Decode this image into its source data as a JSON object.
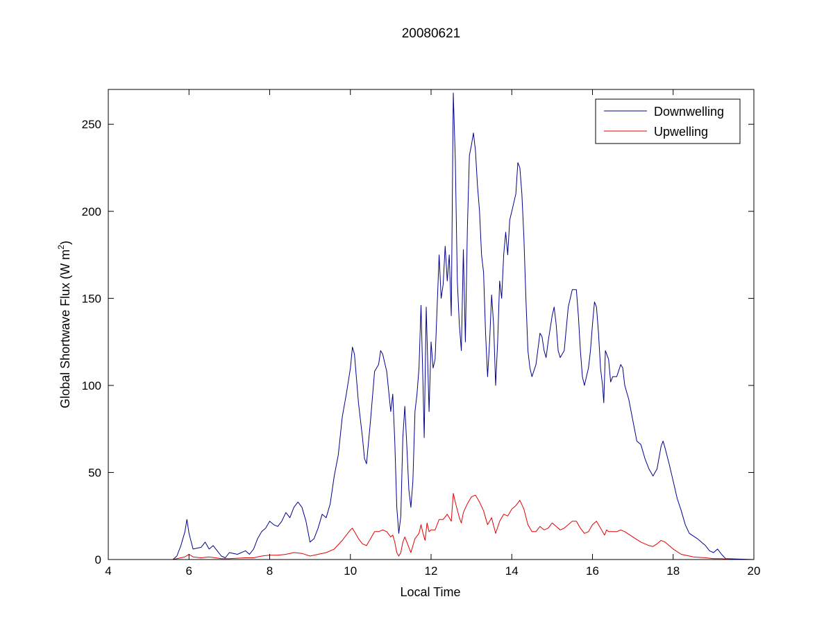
{
  "chart_data": {
    "type": "line",
    "title": "20080621",
    "xlabel": "Local Time",
    "ylabel_main": "Global Shortwave Flux (W m",
    "ylabel_sup": "2",
    "ylabel_end": ")",
    "xlim": [
      4,
      20
    ],
    "ylim": [
      0,
      270
    ],
    "xticks": [
      4,
      6,
      8,
      10,
      12,
      14,
      16,
      18,
      20
    ],
    "yticks": [
      0,
      50,
      100,
      150,
      200,
      250
    ],
    "grid": false,
    "legend_position": "top-right",
    "series": [
      {
        "name": "Downwelling",
        "color": "#00008b",
        "points": [
          [
            4.0,
            0
          ],
          [
            5.6,
            0
          ],
          [
            5.7,
            2
          ],
          [
            5.8,
            8
          ],
          [
            5.9,
            16
          ],
          [
            5.95,
            23
          ],
          [
            6.0,
            15
          ],
          [
            6.1,
            6
          ],
          [
            6.3,
            7
          ],
          [
            6.4,
            10
          ],
          [
            6.5,
            6
          ],
          [
            6.6,
            8
          ],
          [
            6.7,
            5
          ],
          [
            6.8,
            2
          ],
          [
            6.9,
            1
          ],
          [
            7.0,
            4
          ],
          [
            7.2,
            3
          ],
          [
            7.4,
            5
          ],
          [
            7.5,
            3
          ],
          [
            7.6,
            6
          ],
          [
            7.7,
            12
          ],
          [
            7.8,
            16
          ],
          [
            7.9,
            18
          ],
          [
            8.0,
            22
          ],
          [
            8.1,
            20
          ],
          [
            8.2,
            19
          ],
          [
            8.3,
            22
          ],
          [
            8.4,
            27
          ],
          [
            8.5,
            24
          ],
          [
            8.6,
            30
          ],
          [
            8.7,
            33
          ],
          [
            8.8,
            30
          ],
          [
            8.9,
            22
          ],
          [
            9.0,
            10
          ],
          [
            9.1,
            12
          ],
          [
            9.2,
            18
          ],
          [
            9.3,
            26
          ],
          [
            9.4,
            24
          ],
          [
            9.5,
            32
          ],
          [
            9.6,
            48
          ],
          [
            9.7,
            60
          ],
          [
            9.8,
            82
          ],
          [
            9.9,
            95
          ],
          [
            10.0,
            110
          ],
          [
            10.05,
            122
          ],
          [
            10.1,
            118
          ],
          [
            10.2,
            90
          ],
          [
            10.3,
            70
          ],
          [
            10.35,
            58
          ],
          [
            10.4,
            55
          ],
          [
            10.5,
            80
          ],
          [
            10.6,
            108
          ],
          [
            10.7,
            112
          ],
          [
            10.75,
            120
          ],
          [
            10.8,
            118
          ],
          [
            10.9,
            108
          ],
          [
            11.0,
            85
          ],
          [
            11.05,
            95
          ],
          [
            11.1,
            68
          ],
          [
            11.15,
            30
          ],
          [
            11.2,
            15
          ],
          [
            11.25,
            25
          ],
          [
            11.3,
            70
          ],
          [
            11.35,
            88
          ],
          [
            11.4,
            65
          ],
          [
            11.45,
            40
          ],
          [
            11.5,
            30
          ],
          [
            11.55,
            45
          ],
          [
            11.6,
            85
          ],
          [
            11.65,
            95
          ],
          [
            11.7,
            110
          ],
          [
            11.75,
            146
          ],
          [
            11.8,
            100
          ],
          [
            11.83,
            70
          ],
          [
            11.88,
            145
          ],
          [
            11.92,
            110
          ],
          [
            11.95,
            85
          ],
          [
            12.0,
            125
          ],
          [
            12.05,
            110
          ],
          [
            12.1,
            115
          ],
          [
            12.15,
            145
          ],
          [
            12.2,
            175
          ],
          [
            12.25,
            150
          ],
          [
            12.3,
            158
          ],
          [
            12.35,
            180
          ],
          [
            12.4,
            160
          ],
          [
            12.45,
            175
          ],
          [
            12.5,
            140
          ],
          [
            12.55,
            268
          ],
          [
            12.6,
            230
          ],
          [
            12.65,
            160
          ],
          [
            12.7,
            135
          ],
          [
            12.75,
            120
          ],
          [
            12.8,
            178
          ],
          [
            12.85,
            125
          ],
          [
            12.9,
            190
          ],
          [
            12.95,
            232
          ],
          [
            13.0,
            238
          ],
          [
            13.05,
            245
          ],
          [
            13.1,
            235
          ],
          [
            13.15,
            215
          ],
          [
            13.2,
            200
          ],
          [
            13.25,
            175
          ],
          [
            13.3,
            165
          ],
          [
            13.35,
            130
          ],
          [
            13.4,
            105
          ],
          [
            13.45,
            125
          ],
          [
            13.5,
            152
          ],
          [
            13.55,
            135
          ],
          [
            13.6,
            100
          ],
          [
            13.65,
            125
          ],
          [
            13.7,
            160
          ],
          [
            13.75,
            150
          ],
          [
            13.8,
            175
          ],
          [
            13.85,
            188
          ],
          [
            13.9,
            175
          ],
          [
            13.95,
            195
          ],
          [
            14.0,
            200
          ],
          [
            14.05,
            205
          ],
          [
            14.1,
            210
          ],
          [
            14.15,
            228
          ],
          [
            14.2,
            225
          ],
          [
            14.25,
            210
          ],
          [
            14.3,
            185
          ],
          [
            14.35,
            150
          ],
          [
            14.4,
            120
          ],
          [
            14.45,
            110
          ],
          [
            14.5,
            105
          ],
          [
            14.6,
            112
          ],
          [
            14.7,
            130
          ],
          [
            14.75,
            128
          ],
          [
            14.8,
            120
          ],
          [
            14.85,
            116
          ],
          [
            14.9,
            125
          ],
          [
            15.0,
            140
          ],
          [
            15.05,
            145
          ],
          [
            15.1,
            135
          ],
          [
            15.15,
            120
          ],
          [
            15.2,
            116
          ],
          [
            15.3,
            120
          ],
          [
            15.4,
            145
          ],
          [
            15.5,
            155
          ],
          [
            15.6,
            155
          ],
          [
            15.65,
            140
          ],
          [
            15.7,
            120
          ],
          [
            15.75,
            105
          ],
          [
            15.8,
            100
          ],
          [
            15.9,
            110
          ],
          [
            15.95,
            120
          ],
          [
            16.0,
            135
          ],
          [
            16.05,
            148
          ],
          [
            16.1,
            145
          ],
          [
            16.15,
            130
          ],
          [
            16.2,
            110
          ],
          [
            16.25,
            100
          ],
          [
            16.28,
            90
          ],
          [
            16.32,
            120
          ],
          [
            16.4,
            115
          ],
          [
            16.45,
            102
          ],
          [
            16.5,
            105
          ],
          [
            16.6,
            105
          ],
          [
            16.7,
            112
          ],
          [
            16.75,
            110
          ],
          [
            16.8,
            100
          ],
          [
            16.9,
            92
          ],
          [
            17.0,
            80
          ],
          [
            17.1,
            68
          ],
          [
            17.2,
            66
          ],
          [
            17.3,
            58
          ],
          [
            17.4,
            52
          ],
          [
            17.5,
            48
          ],
          [
            17.6,
            52
          ],
          [
            17.7,
            65
          ],
          [
            17.75,
            68
          ],
          [
            17.8,
            64
          ],
          [
            17.9,
            55
          ],
          [
            18.0,
            45
          ],
          [
            18.1,
            35
          ],
          [
            18.2,
            28
          ],
          [
            18.3,
            20
          ],
          [
            18.4,
            15
          ],
          [
            18.6,
            12
          ],
          [
            18.8,
            8
          ],
          [
            18.9,
            5
          ],
          [
            19.0,
            4
          ],
          [
            19.1,
            6
          ],
          [
            19.2,
            3
          ],
          [
            19.3,
            0.5
          ],
          [
            20.0,
            0
          ]
        ]
      },
      {
        "name": "Upwelling",
        "color": "#e00000",
        "points": [
          [
            4.0,
            0
          ],
          [
            5.6,
            0
          ],
          [
            5.7,
            0.5
          ],
          [
            5.9,
            1.5
          ],
          [
            6.0,
            3
          ],
          [
            6.1,
            1.5
          ],
          [
            6.3,
            1
          ],
          [
            6.5,
            1.5
          ],
          [
            6.8,
            0.5
          ],
          [
            7.0,
            0.5
          ],
          [
            7.4,
            1
          ],
          [
            7.6,
            1
          ],
          [
            7.8,
            2
          ],
          [
            8.0,
            2.5
          ],
          [
            8.2,
            2.5
          ],
          [
            8.4,
            3
          ],
          [
            8.6,
            4
          ],
          [
            8.8,
            3.5
          ],
          [
            9.0,
            2
          ],
          [
            9.2,
            3
          ],
          [
            9.4,
            4
          ],
          [
            9.6,
            6
          ],
          [
            9.8,
            11
          ],
          [
            9.9,
            14
          ],
          [
            10.0,
            17
          ],
          [
            10.05,
            18
          ],
          [
            10.1,
            16
          ],
          [
            10.2,
            12
          ],
          [
            10.3,
            9
          ],
          [
            10.4,
            8
          ],
          [
            10.5,
            12
          ],
          [
            10.6,
            16
          ],
          [
            10.7,
            16
          ],
          [
            10.8,
            17
          ],
          [
            10.9,
            16
          ],
          [
            11.0,
            13
          ],
          [
            11.05,
            14
          ],
          [
            11.1,
            10
          ],
          [
            11.15,
            4
          ],
          [
            11.2,
            2
          ],
          [
            11.25,
            4
          ],
          [
            11.3,
            10
          ],
          [
            11.35,
            13
          ],
          [
            11.4,
            10
          ],
          [
            11.5,
            4
          ],
          [
            11.6,
            12
          ],
          [
            11.7,
            15
          ],
          [
            11.75,
            20
          ],
          [
            11.8,
            15
          ],
          [
            11.85,
            11
          ],
          [
            11.9,
            21
          ],
          [
            11.95,
            16
          ],
          [
            12.0,
            17
          ],
          [
            12.1,
            17
          ],
          [
            12.2,
            23
          ],
          [
            12.3,
            23
          ],
          [
            12.4,
            26
          ],
          [
            12.5,
            22
          ],
          [
            12.55,
            38
          ],
          [
            12.6,
            33
          ],
          [
            12.7,
            24
          ],
          [
            12.75,
            21
          ],
          [
            12.8,
            27
          ],
          [
            12.9,
            32
          ],
          [
            13.0,
            36
          ],
          [
            13.1,
            37
          ],
          [
            13.2,
            33
          ],
          [
            13.3,
            28
          ],
          [
            13.4,
            20
          ],
          [
            13.5,
            24
          ],
          [
            13.6,
            15
          ],
          [
            13.7,
            22
          ],
          [
            13.8,
            26
          ],
          [
            13.9,
            25
          ],
          [
            14.0,
            29
          ],
          [
            14.1,
            31
          ],
          [
            14.2,
            34
          ],
          [
            14.3,
            29
          ],
          [
            14.4,
            20
          ],
          [
            14.5,
            16
          ],
          [
            14.6,
            16
          ],
          [
            14.7,
            19
          ],
          [
            14.8,
            17
          ],
          [
            14.9,
            18
          ],
          [
            15.0,
            21
          ],
          [
            15.1,
            19
          ],
          [
            15.2,
            17
          ],
          [
            15.3,
            18
          ],
          [
            15.5,
            22
          ],
          [
            15.6,
            22
          ],
          [
            15.7,
            18
          ],
          [
            15.8,
            15
          ],
          [
            15.9,
            16
          ],
          [
            16.0,
            20
          ],
          [
            16.1,
            22
          ],
          [
            16.2,
            18
          ],
          [
            16.3,
            14
          ],
          [
            16.35,
            17
          ],
          [
            16.4,
            16
          ],
          [
            16.6,
            16
          ],
          [
            16.7,
            17
          ],
          [
            16.8,
            16
          ],
          [
            17.0,
            13
          ],
          [
            17.2,
            10
          ],
          [
            17.4,
            8
          ],
          [
            17.5,
            7.5
          ],
          [
            17.6,
            9
          ],
          [
            17.7,
            11
          ],
          [
            17.8,
            10
          ],
          [
            17.9,
            8
          ],
          [
            18.0,
            6
          ],
          [
            18.2,
            3
          ],
          [
            18.5,
            1.5
          ],
          [
            18.8,
            1
          ],
          [
            19.0,
            0.5
          ],
          [
            19.2,
            0.5
          ],
          [
            19.4,
            0
          ],
          [
            20.0,
            0
          ]
        ]
      }
    ]
  }
}
